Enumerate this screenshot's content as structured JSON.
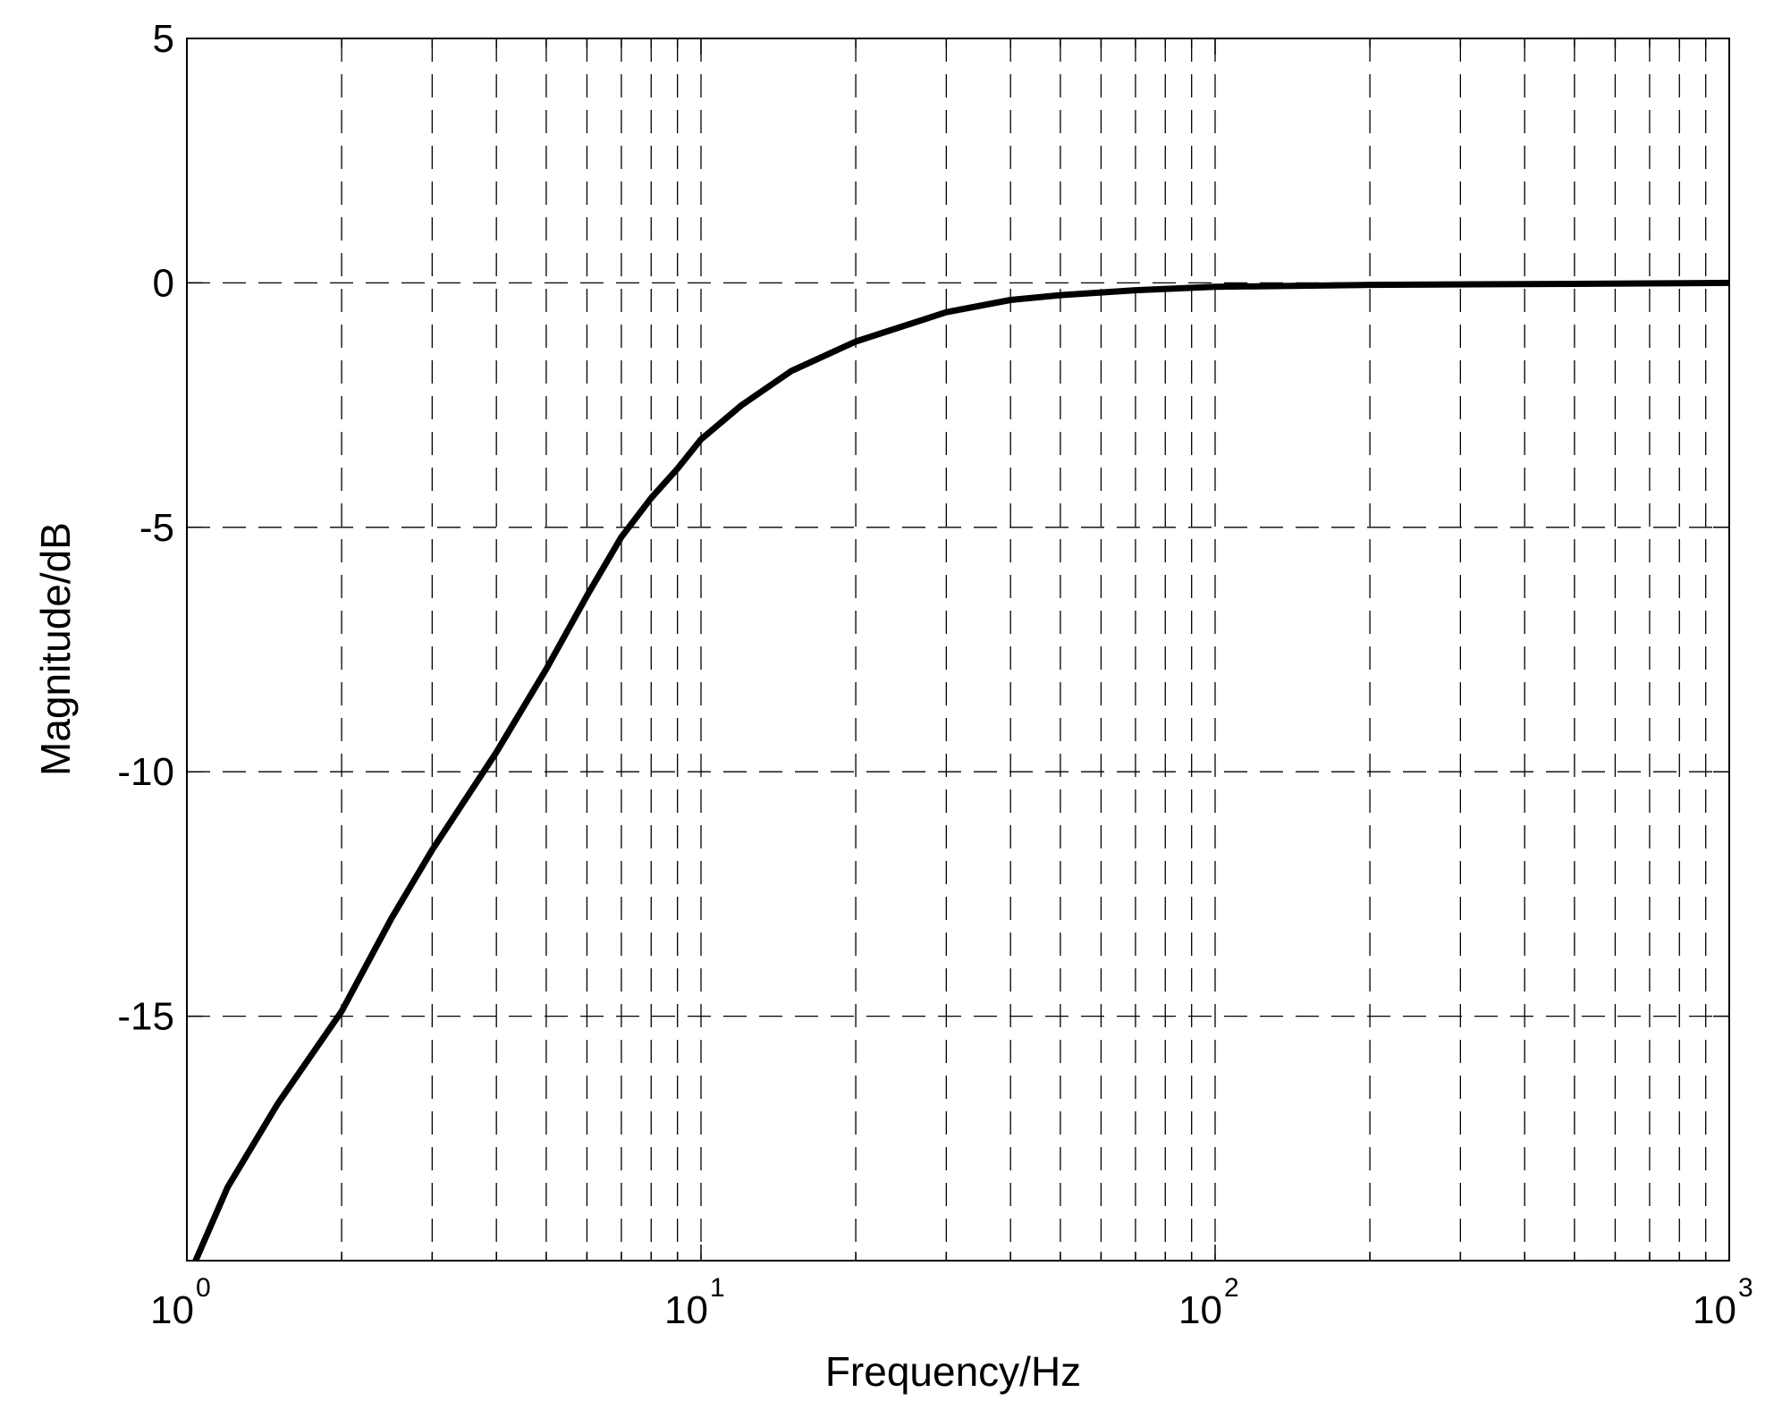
{
  "chart_data": {
    "type": "line",
    "title": "",
    "xlabel": "Frequency/Hz",
    "ylabel": "Magnitude/dB",
    "x_scale": "log",
    "xlim": [
      1,
      1000
    ],
    "ylim": [
      -20,
      5
    ],
    "x_ticks": [
      {
        "base": "10",
        "exp": "0",
        "value": 1
      },
      {
        "base": "10",
        "exp": "1",
        "value": 10
      },
      {
        "base": "10",
        "exp": "2",
        "value": 100
      },
      {
        "base": "10",
        "exp": "3",
        "value": 1000
      }
    ],
    "y_ticks": [
      "5",
      "0",
      "-5",
      "-10",
      "-15"
    ],
    "y_tick_values": [
      5,
      0,
      -5,
      -10,
      -15
    ],
    "grid": true,
    "grid_style": "dashed",
    "series": [
      {
        "color": "#000000",
        "x": [
          1.04,
          1.2,
          1.5,
          2.0,
          2.5,
          3.0,
          4.0,
          5.0,
          6.0,
          7.0,
          8.0,
          9.0,
          10.0,
          12.0,
          15.0,
          20.0,
          30.0,
          40.0,
          50.0,
          70.0,
          100.0,
          200.0,
          500.0,
          1000.0
        ],
        "y": [
          -20.0,
          -18.5,
          -16.8,
          -14.9,
          -13.0,
          -11.6,
          -9.6,
          -7.9,
          -6.4,
          -5.2,
          -4.4,
          -3.8,
          -3.2,
          -2.5,
          -1.8,
          -1.2,
          -0.6,
          -0.35,
          -0.25,
          -0.15,
          -0.08,
          -0.04,
          -0.02,
          0.0
        ]
      }
    ]
  }
}
